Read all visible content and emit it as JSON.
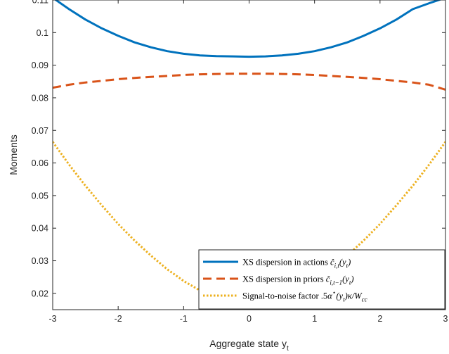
{
  "chart_data": {
    "type": "line",
    "xlabel": "Aggregate state y",
    "xlabel_subscript": "t",
    "ylabel": "Moments",
    "xlim": [
      -3,
      3
    ],
    "ylim": [
      0.015,
      0.11
    ],
    "xticks": [
      -3,
      -2,
      -1,
      0,
      1,
      2,
      3
    ],
    "xtick_labels": [
      "-3",
      "-2",
      "-1",
      "0",
      "1",
      "2",
      "3"
    ],
    "yticks": [
      0.02,
      0.03,
      0.04,
      0.05,
      0.06,
      0.07,
      0.08,
      0.09,
      0.1,
      0.11
    ],
    "ytick_labels": [
      "0.02",
      "0.03",
      "0.04",
      "0.05",
      "0.06",
      "0.07",
      "0.08",
      "0.09",
      "0.1",
      "0.11"
    ],
    "grid": false,
    "legend_position": "bottom-right",
    "x": [
      -3,
      -2.75,
      -2.5,
      -2.25,
      -2,
      -1.75,
      -1.5,
      -1.25,
      -1,
      -0.75,
      -0.5,
      -0.25,
      0,
      0.25,
      0.5,
      0.75,
      1,
      1.25,
      1.5,
      1.75,
      2,
      2.25,
      2.5,
      2.75,
      3
    ],
    "series": [
      {
        "name": "XS dispersion in actions ĉ(y)",
        "legend_main": "XS dispersion in actions ",
        "legend_math": "ĉ",
        "legend_sub": "i,t",
        "legend_tail": "(y",
        "legend_tail_sub": "t",
        "legend_end": ")",
        "color": "#0072BD",
        "style": "solid",
        "values": [
          0.1107,
          0.1072,
          0.104,
          0.1013,
          0.099,
          0.097,
          0.0955,
          0.0943,
          0.0935,
          0.093,
          0.0928,
          0.0927,
          0.0926,
          0.0927,
          0.093,
          0.0935,
          0.0943,
          0.0955,
          0.097,
          0.099,
          0.1013,
          0.104,
          0.1072,
          0.109,
          0.1107
        ]
      },
      {
        "name": "XS dispersion in priors ĉ(y)",
        "legend_main": "XS dispersion in priors ",
        "legend_math": "ĉ",
        "legend_sub": "i,t−1",
        "legend_tail": "(y",
        "legend_tail_sub": "t",
        "legend_end": ")",
        "color": "#D95319",
        "style": "dashed",
        "values": [
          0.0831,
          0.084,
          0.0847,
          0.0852,
          0.0857,
          0.0861,
          0.0864,
          0.0867,
          0.087,
          0.0872,
          0.0873,
          0.0874,
          0.0874,
          0.0874,
          0.0873,
          0.0872,
          0.087,
          0.0867,
          0.0864,
          0.0861,
          0.0857,
          0.0852,
          0.0847,
          0.084,
          0.0825
        ]
      },
      {
        "name": "Signal-to-noise factor .5α*(y)κ/W",
        "legend_main": "Signal-to-noise factor .5",
        "legend_math": "α",
        "legend_sup": "⋆",
        "legend_tail": "(y",
        "legend_tail_sub": "t",
        "legend_end": ")κ/W",
        "legend_end_sub": "cc",
        "color": "#EDB120",
        "style": "dotted",
        "values": [
          0.0665,
          0.0595,
          0.053,
          0.047,
          0.0413,
          0.0362,
          0.0316,
          0.0274,
          0.0238,
          0.0209,
          0.0186,
          0.017,
          0.0163,
          0.017,
          0.0186,
          0.0209,
          0.0238,
          0.0274,
          0.0316,
          0.0362,
          0.0413,
          0.047,
          0.053,
          0.0595,
          0.0665
        ]
      }
    ]
  }
}
